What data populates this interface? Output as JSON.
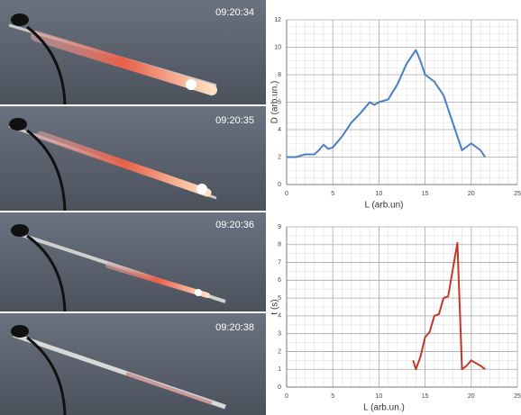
{
  "frames": [
    {
      "time": "09:20:34"
    },
    {
      "time": "09:20:35"
    },
    {
      "time": "09:20:36"
    },
    {
      "time": "09:20:38"
    }
  ],
  "chart_data": [
    {
      "type": "line",
      "xlabel": "L (arb.un)",
      "ylabel": "D (arb.un.)",
      "x": [
        0,
        1,
        2,
        3,
        3.5,
        4,
        4.5,
        5,
        6,
        7,
        8,
        9,
        9.5,
        10,
        11,
        12,
        13,
        14,
        14.5,
        15,
        16,
        17,
        18,
        19,
        20,
        21,
        21.5
      ],
      "series": [
        {
          "color": "#4a7fc1",
          "values": [
            2,
            2,
            2.2,
            2.2,
            2.5,
            2.9,
            2.6,
            2.7,
            3.5,
            4.5,
            5.2,
            6,
            5.8,
            6,
            6.2,
            7.3,
            8.8,
            9.8,
            9,
            8,
            7.5,
            6.5,
            4.5,
            2.5,
            3,
            2.5,
            2
          ]
        }
      ],
      "xlim": [
        0,
        25
      ],
      "xticks": [
        0,
        5,
        10,
        15,
        20,
        25
      ],
      "ylim": [
        0,
        12
      ],
      "yticks": [
        0,
        2,
        4,
        6,
        8,
        10,
        12
      ],
      "grid": true
    },
    {
      "type": "line",
      "xlabel": "L (arb.un.)",
      "ylabel": "t (s)",
      "x": [
        13.7,
        14,
        14.5,
        15,
        15.5,
        16,
        16.5,
        17,
        17.5,
        18,
        18.5,
        19,
        19.5,
        20,
        21,
        21.5
      ],
      "series": [
        {
          "color": "#c0392b",
          "values": [
            1.5,
            1,
            1.7,
            2.8,
            3.1,
            4,
            4.1,
            5,
            5.1,
            6.6,
            8.1,
            1,
            1.2,
            1.5,
            1.2,
            1
          ]
        }
      ],
      "xlim": [
        0,
        25
      ],
      "xticks": [
        0,
        5,
        10,
        15,
        20,
        25
      ],
      "ylim": [
        0,
        9
      ],
      "yticks": [
        0,
        1,
        2,
        3,
        4,
        5,
        6,
        7,
        8,
        9
      ],
      "grid": true
    }
  ]
}
